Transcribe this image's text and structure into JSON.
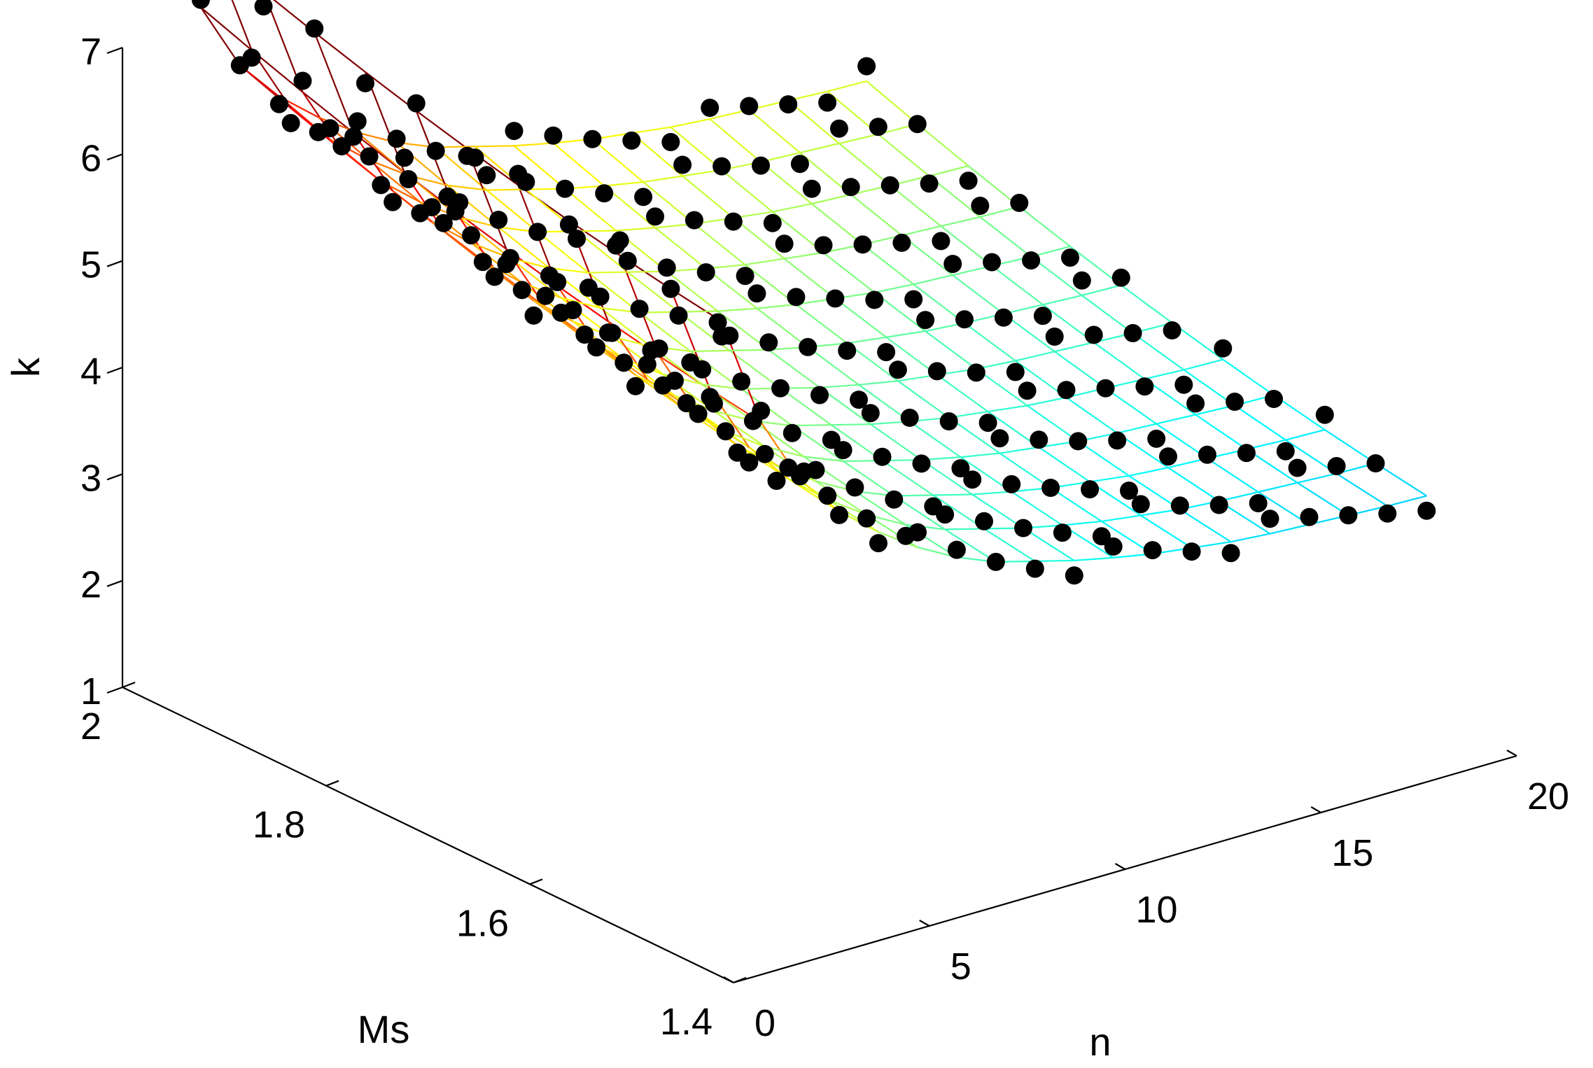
{
  "chart_data": {
    "type": "surface-3d-with-scatter",
    "axes": {
      "n": {
        "label": "n",
        "range": [
          0,
          20
        ],
        "ticks": [
          "0",
          "5",
          "10",
          "15",
          "20"
        ]
      },
      "ms": {
        "label": "Ms",
        "range": [
          1.4,
          2.0
        ],
        "ticks": [
          "1.4",
          "1.6",
          "1.8",
          "2"
        ]
      },
      "k": {
        "label": "k",
        "range": [
          1,
          7
        ],
        "ticks": [
          "1",
          "2",
          "3",
          "4",
          "5",
          "6",
          "7"
        ]
      }
    },
    "surface": {
      "colormap": "jet",
      "n": [
        1,
        2,
        3,
        4,
        5,
        6,
        7,
        8,
        9,
        10,
        11,
        12,
        13,
        14,
        15,
        16,
        17,
        18,
        19
      ],
      "ms": [
        1.45,
        1.5,
        1.55,
        1.6,
        1.65,
        1.7,
        1.75,
        1.8,
        1.85,
        1.9,
        1.95,
        2.0
      ],
      "k_profile_by_n": [
        6.8,
        5.75,
        5.1,
        4.7,
        4.4,
        4.15,
        3.95,
        3.8,
        3.7,
        3.6,
        3.52,
        3.45,
        3.4,
        3.35,
        3.32,
        3.3,
        3.28,
        3.26,
        3.25
      ],
      "ms_effect": 2.0,
      "ms_curvature": 0.35
    },
    "points": {
      "n": [
        1,
        2,
        3,
        4,
        5,
        6,
        7,
        8,
        9,
        10,
        11,
        12,
        13,
        14,
        15,
        16,
        17,
        18,
        19
      ],
      "ms": [
        1.45,
        1.5,
        1.55,
        1.6,
        1.65,
        1.7,
        1.75,
        1.8,
        1.85,
        1.9,
        1.95,
        2.0
      ],
      "marker": "filled circle",
      "color": "#000000"
    },
    "colors": {
      "background": "#ffffff",
      "axes": "#000000",
      "points": "#000000"
    }
  }
}
